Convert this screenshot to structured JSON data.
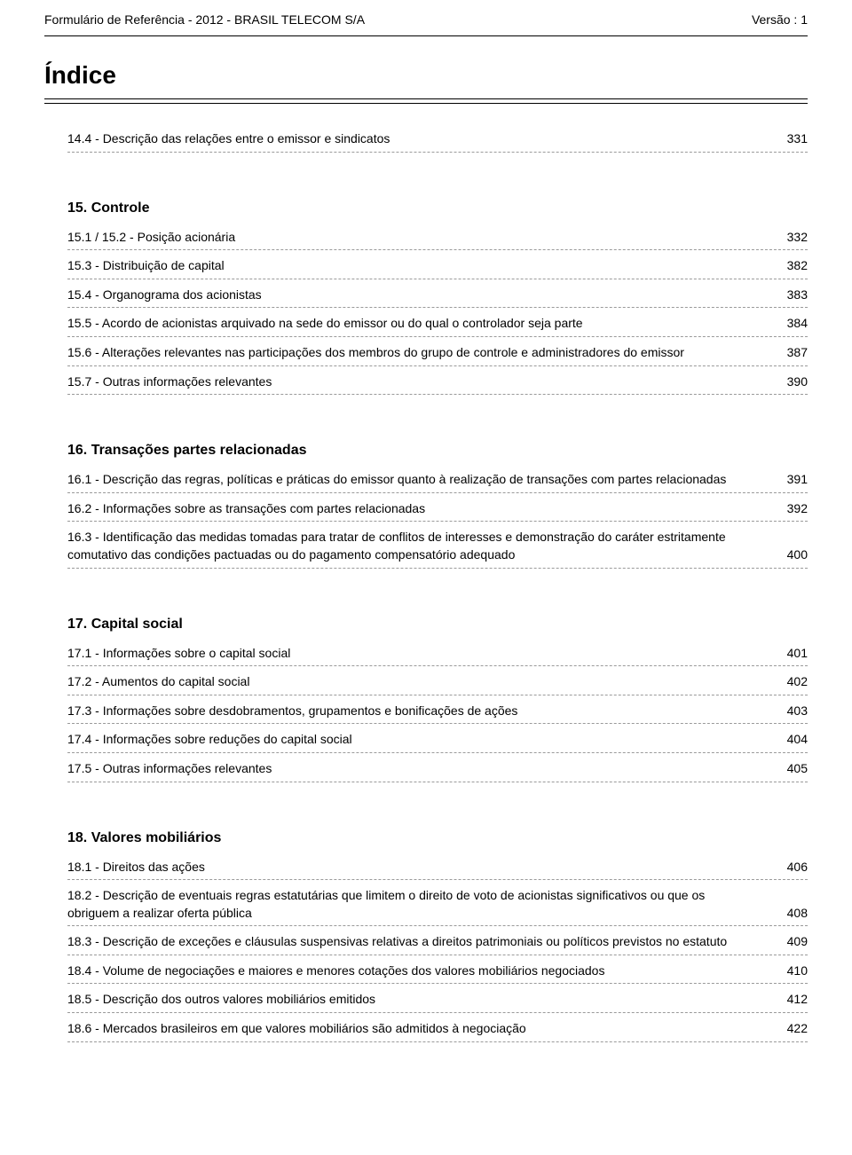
{
  "header": {
    "left": "Formulário de Referência - 2012 - BRASIL TELECOM S/A",
    "right": "Versão : 1"
  },
  "index_title": "Índice",
  "sections": [
    {
      "heading": "",
      "items": [
        {
          "label": "14.4 - Descrição das relações entre o emissor e sindicatos",
          "page": "331"
        }
      ]
    },
    {
      "heading": "15. Controle",
      "items": [
        {
          "label": "15.1 / 15.2 - Posição acionária",
          "page": "332"
        },
        {
          "label": "15.3 - Distribuição de capital",
          "page": "382"
        },
        {
          "label": "15.4 - Organograma dos acionistas",
          "page": "383"
        },
        {
          "label": "15.5 - Acordo de acionistas arquivado na sede do emissor ou do qual o controlador seja parte",
          "page": "384"
        },
        {
          "label": "15.6 - Alterações relevantes nas participações dos membros do grupo de controle e administradores do emissor",
          "page": "387"
        },
        {
          "label": "15.7 - Outras informações relevantes",
          "page": "390"
        }
      ]
    },
    {
      "heading": "16. Transações partes relacionadas",
      "items": [
        {
          "label": "16.1 - Descrição das regras, políticas e práticas do emissor quanto à realização de transações com partes relacionadas",
          "page": "391"
        },
        {
          "label": "16.2 - Informações sobre as transações com partes relacionadas",
          "page": "392"
        },
        {
          "label": "16.3 - Identificação das medidas tomadas para tratar de conflitos de interesses e demonstração do caráter estritamente comutativo das condições pactuadas ou do pagamento compensatório adequado",
          "page": "400"
        }
      ]
    },
    {
      "heading": "17. Capital social",
      "items": [
        {
          "label": "17.1 - Informações sobre o capital social",
          "page": "401"
        },
        {
          "label": "17.2 - Aumentos do capital social",
          "page": "402"
        },
        {
          "label": "17.3 - Informações sobre desdobramentos, grupamentos e bonificações de ações",
          "page": "403"
        },
        {
          "label": "17.4 - Informações sobre reduções do capital social",
          "page": "404"
        },
        {
          "label": "17.5 - Outras informações relevantes",
          "page": "405"
        }
      ]
    },
    {
      "heading": "18. Valores mobiliários",
      "items": [
        {
          "label": "18.1 - Direitos das ações",
          "page": "406"
        },
        {
          "label": "18.2 - Descrição de eventuais regras estatutárias que limitem o direito de voto de acionistas significativos ou que os obriguem a realizar oferta pública",
          "page": "408"
        },
        {
          "label": "18.3 - Descrição de exceções e cláusulas suspensivas relativas a direitos patrimoniais ou políticos previstos no estatuto",
          "page": "409"
        },
        {
          "label": "18.4 - Volume de negociações e maiores e menores cotações dos valores mobiliários negociados",
          "page": "410"
        },
        {
          "label": "18.5 - Descrição dos outros valores mobiliários emitidos",
          "page": "412"
        },
        {
          "label": "18.6 - Mercados brasileiros em que valores mobiliários são admitidos à negociação",
          "page": "422"
        }
      ]
    }
  ]
}
